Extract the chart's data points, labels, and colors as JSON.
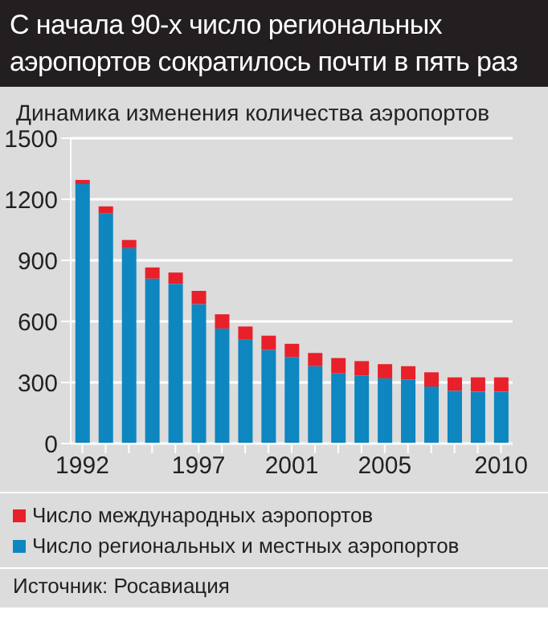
{
  "chart_data": {
    "type": "bar",
    "title": "С начала 90-х число региональных аэропортов сократилось почти в пять раз",
    "subtitle": "Динамика изменения количества аэропортов",
    "categories": [
      "1992",
      null,
      null,
      null,
      null,
      "1997",
      null,
      null,
      null,
      "2001",
      null,
      null,
      null,
      "2005",
      null,
      null,
      null,
      null,
      "2010"
    ],
    "stacked": true,
    "series": [
      {
        "name": "Число региональных и местных аэропортов",
        "color": "#0e86c0",
        "values": [
          1275,
          1130,
          960,
          810,
          785,
          685,
          565,
          510,
          460,
          425,
          380,
          345,
          335,
          320,
          315,
          280,
          260,
          255,
          255
        ]
      },
      {
        "name": "Число международных аэропортов",
        "color": "#e8202a",
        "values": [
          20,
          35,
          40,
          55,
          55,
          65,
          70,
          65,
          70,
          65,
          65,
          75,
          70,
          70,
          65,
          70,
          65,
          70,
          70
        ]
      }
    ],
    "ylim": [
      0,
      1500
    ],
    "yticks": [
      0,
      300,
      600,
      900,
      1200,
      1500
    ],
    "grid": "y",
    "legend": "bottom",
    "annotations": [
      "Источник: Росавиация"
    ]
  }
}
